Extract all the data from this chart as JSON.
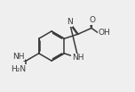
{
  "bg_color": "#efefef",
  "line_color": "#3a3a3a",
  "text_color": "#3a3a3a",
  "line_width": 1.1,
  "font_size": 6.5,
  "figsize": [
    1.52,
    1.03
  ],
  "dpi": 100,
  "xlim": [
    0,
    1.52
  ],
  "ylim": [
    0,
    1.03
  ]
}
